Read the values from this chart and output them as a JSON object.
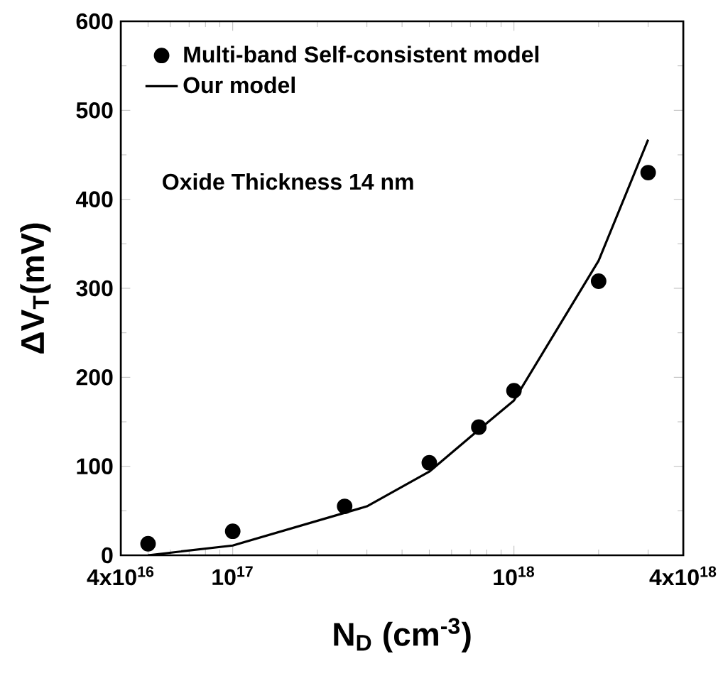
{
  "chart_data": {
    "type": "line",
    "xlabel": "N$_{D}$ (cm$^{-3}$)",
    "ylabel": "ΔV$_{T}$(mV)",
    "log": "x",
    "xlim": [
      4e+16,
      4e+18
    ],
    "ylim": [
      0,
      600
    ],
    "xticks": [
      {
        "value": 4e+16,
        "label": "4x10$^{16}$"
      },
      {
        "value": 1e+17,
        "label": "10$^{17}$"
      },
      {
        "value": 1e+18,
        "label": "10$^{18}$"
      },
      {
        "value": 4e+18,
        "label": "4x10$^{18}$"
      }
    ],
    "yticks": [
      0,
      100,
      200,
      300,
      400,
      500,
      600
    ],
    "legend": "top left",
    "grid": false,
    "annotations": [
      "Oxide Thickness 14 nm"
    ],
    "series": [
      {
        "name": "Multi-band Self-consistent model",
        "type": "scatter",
        "marker": "circle",
        "color": "#000000",
        "x": [
          5e+16,
          1e+17,
          2.5e+17,
          5e+17,
          7.5e+17,
          1e+18,
          2e+18,
          3e+18
        ],
        "values": [
          13,
          27,
          55,
          104,
          144,
          185,
          308,
          430
        ]
      },
      {
        "name": "Our model",
        "type": "line",
        "marker": "none",
        "line_style": "solid",
        "color": "#000000",
        "x": [
          5e+16,
          1e+17,
          3e+17,
          5e+17,
          7.5e+17,
          1e+18,
          2e+18,
          3e+18
        ],
        "values": [
          0,
          11,
          55,
          94,
          141,
          174,
          331,
          467
        ]
      }
    ]
  }
}
